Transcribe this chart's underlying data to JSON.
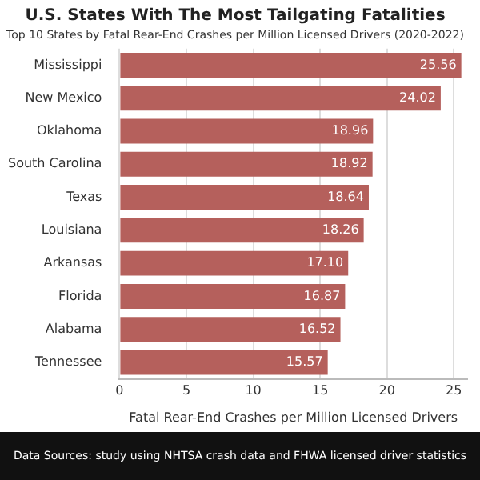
{
  "chart_data": {
    "type": "bar",
    "orientation": "horizontal",
    "title": "U.S. States With The Most Tailgating Fatalities",
    "subtitle": "Top 10 States by Fatal Rear-End Crashes per Million Licensed Drivers (2020-2022)",
    "categories": [
      "Mississippi",
      "New Mexico",
      "Oklahoma",
      "South Carolina",
      "Texas",
      "Louisiana",
      "Arkansas",
      "Florida",
      "Alabama",
      "Tennessee"
    ],
    "values": [
      25.56,
      24.02,
      18.96,
      18.92,
      18.64,
      18.26,
      17.1,
      16.87,
      16.52,
      15.57
    ],
    "color": "#b5605c",
    "xlabel": "Fatal Rear-End Crashes per Million Licensed Drivers",
    "xlim": [
      0,
      26
    ],
    "xticks": [
      0,
      5,
      10,
      15,
      20,
      25
    ],
    "value_labels": [
      "25.56",
      "24.02",
      "18.96",
      "18.92",
      "18.64",
      "18.26",
      "17.10",
      "16.87",
      "16.52",
      "15.57"
    ],
    "grid": "x",
    "annotations": [
      "Data Sources: study using NHTSA crash data and FHWA licensed driver statistics"
    ]
  }
}
